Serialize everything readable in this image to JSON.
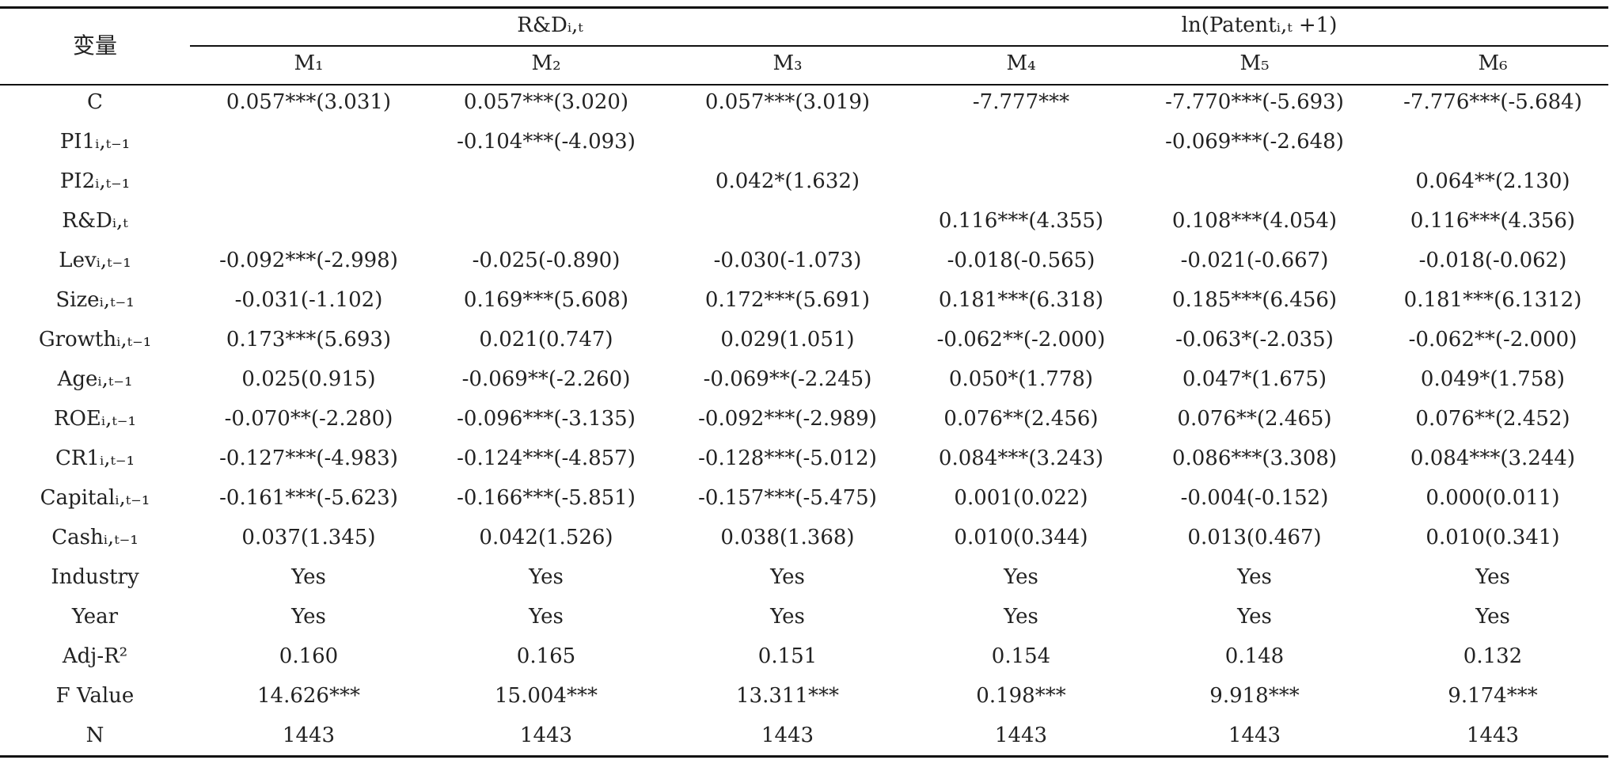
{
  "header": {
    "var_label": "变量",
    "group_rd": "R&Dᵢ,ₜ",
    "group_patent": "ln(Patentᵢ,ₜ +1)",
    "models": [
      "M₁",
      "M₂",
      "M₃",
      "M₄",
      "M₅",
      "M₆"
    ]
  },
  "rows": [
    {
      "label": "C",
      "cells": [
        "0.057***(3.031)",
        "0.057***(3.020)",
        "0.057***(3.019)",
        "-7.777***",
        "-7.770***(-5.693)",
        "-7.776***(-5.684)"
      ]
    },
    {
      "label": "PI1ᵢ,ₜ₋₁",
      "cells": [
        "",
        "-0.104***(-4.093)",
        "",
        "",
        "-0.069***(-2.648)",
        ""
      ]
    },
    {
      "label": "PI2ᵢ,ₜ₋₁",
      "cells": [
        "",
        "",
        "0.042*(1.632)",
        "",
        "",
        "0.064**(2.130)"
      ]
    },
    {
      "label": "R&Dᵢ,ₜ",
      "cells": [
        "",
        "",
        "",
        "0.116***(4.355)",
        "0.108***(4.054)",
        "0.116***(4.356)"
      ]
    },
    {
      "label": "Levᵢ,ₜ₋₁",
      "cells": [
        "-0.092***(-2.998)",
        "-0.025(-0.890)",
        "-0.030(-1.073)",
        "-0.018(-0.565)",
        "-0.021(-0.667)",
        "-0.018(-0.062)"
      ]
    },
    {
      "label": "Sizeᵢ,ₜ₋₁",
      "cells": [
        "-0.031(-1.102)",
        "0.169***(5.608)",
        "0.172***(5.691)",
        "0.181***(6.318)",
        "0.185***(6.456)",
        "0.181***(6.1312)"
      ]
    },
    {
      "label": "Growthᵢ,ₜ₋₁",
      "cells": [
        "0.173***(5.693)",
        "0.021(0.747)",
        "0.029(1.051)",
        "-0.062**(-2.000)",
        "-0.063*(-2.035)",
        "-0.062**(-2.000)"
      ]
    },
    {
      "label": "Ageᵢ,ₜ₋₁",
      "cells": [
        "0.025(0.915)",
        "-0.069**(-2.260)",
        "-0.069**(-2.245)",
        "0.050*(1.778)",
        "0.047*(1.675)",
        "0.049*(1.758)"
      ]
    },
    {
      "label": "ROEᵢ,ₜ₋₁",
      "cells": [
        "-0.070**(-2.280)",
        "-0.096***(-3.135)",
        "-0.092***(-2.989)",
        "0.076**(2.456)",
        "0.076**(2.465)",
        "0.076**(2.452)"
      ]
    },
    {
      "label": "CR1ᵢ,ₜ₋₁",
      "cells": [
        "-0.127***(-4.983)",
        "-0.124***(-4.857)",
        "-0.128***(-5.012)",
        "0.084***(3.243)",
        "0.086***(3.308)",
        "0.084***(3.244)"
      ]
    },
    {
      "label": "Capitalᵢ,ₜ₋₁",
      "cells": [
        "-0.161***(-5.623)",
        "-0.166***(-5.851)",
        "-0.157***(-5.475)",
        "0.001(0.022)",
        "-0.004(-0.152)",
        "0.000(0.011)"
      ]
    },
    {
      "label": "Cashᵢ,ₜ₋₁",
      "cells": [
        "0.037(1.345)",
        "0.042(1.526)",
        "0.038(1.368)",
        "0.010(0.344)",
        "0.013(0.467)",
        "0.010(0.341)"
      ]
    },
    {
      "label": "Industry",
      "cells": [
        "Yes",
        "Yes",
        "Yes",
        "Yes",
        "Yes",
        "Yes"
      ]
    },
    {
      "label": "Year",
      "cells": [
        "Yes",
        "Yes",
        "Yes",
        "Yes",
        "Yes",
        "Yes"
      ]
    },
    {
      "label": "Adj-R²",
      "cells": [
        "0.160",
        "0.165",
        "0.151",
        "0.154",
        "0.148",
        "0.132"
      ]
    },
    {
      "label": "F Value",
      "cells": [
        "14.626***",
        "15.004***",
        "13.311***",
        "0.198***",
        "9.918***",
        "9.174***"
      ]
    },
    {
      "label": "N",
      "cells": [
        "1443",
        "1443",
        "1443",
        "1443",
        "1443",
        "1443"
      ]
    }
  ]
}
